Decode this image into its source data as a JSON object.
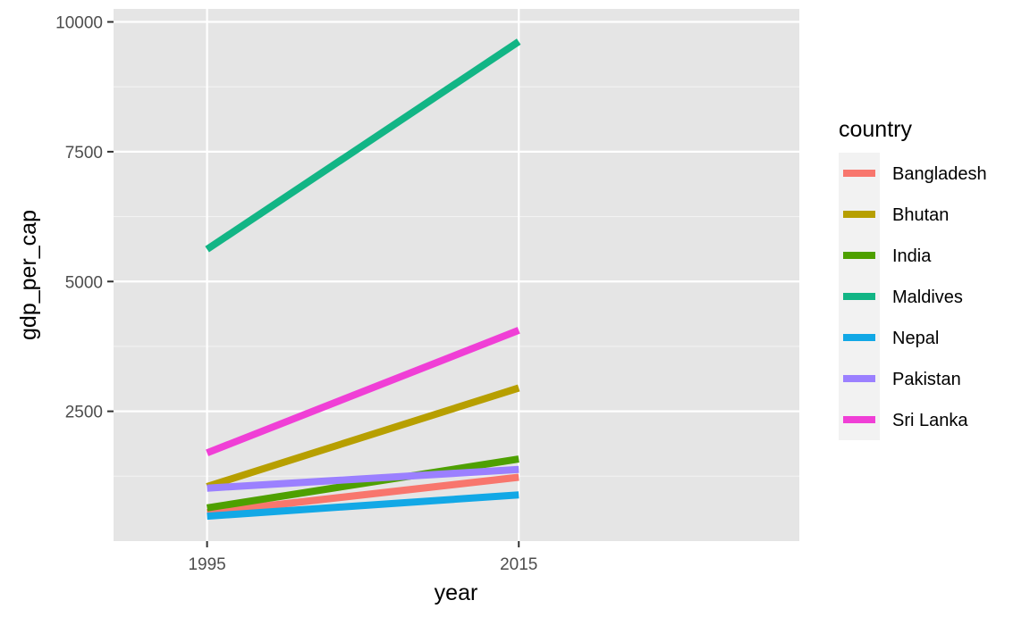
{
  "chart_data": {
    "type": "line",
    "xlabel": "year",
    "ylabel": "gdp_per_cap",
    "x": [
      1995,
      2015
    ],
    "x_ticks": [
      "1995",
      "2015"
    ],
    "y_ticks": [
      "2500",
      "5000",
      "7500",
      "10000"
    ],
    "y_tick_values": [
      2500,
      5000,
      7500,
      10000
    ],
    "xlim": [
      1989,
      2033
    ],
    "ylim": [
      0,
      10250
    ],
    "grid": true,
    "background": "#e5e5e5",
    "legend": {
      "title": "country",
      "position": "right"
    },
    "series": [
      {
        "name": "Bangladesh",
        "color": "#F8766D",
        "values": [
          550,
          1230
        ]
      },
      {
        "name": "Bhutan",
        "color": "#B79F00",
        "values": [
          1050,
          2950
        ]
      },
      {
        "name": "India",
        "color": "#4EA000",
        "values": [
          640,
          1580
        ]
      },
      {
        "name": "Maldives",
        "color": "#12B585",
        "values": [
          5620,
          9620
        ]
      },
      {
        "name": "Nepal",
        "color": "#12A8E6",
        "values": [
          480,
          890
        ]
      },
      {
        "name": "Pakistan",
        "color": "#9B80FF",
        "values": [
          1020,
          1380
        ]
      },
      {
        "name": "Sri Lanka",
        "color": "#F03FD6",
        "values": [
          1700,
          4060
        ]
      }
    ]
  }
}
